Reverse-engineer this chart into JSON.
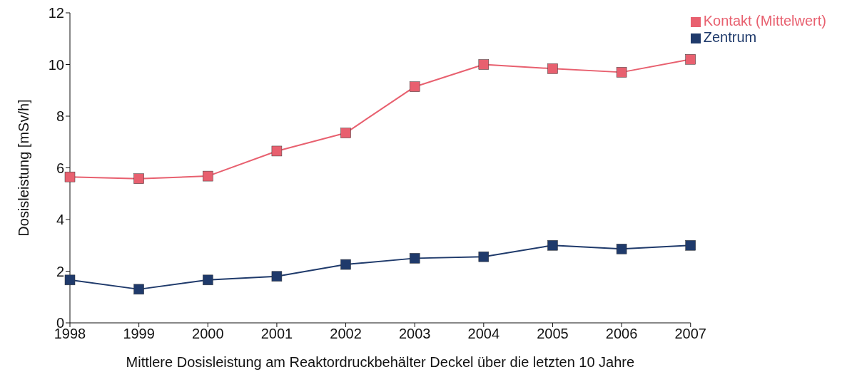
{
  "chart_data": {
    "type": "line",
    "xlabel": "Mittlere Dosisleistung am Reaktordruckbehälter Deckel über die letzten 10 Jahre",
    "ylabel": "Dosisleistung [mSv/h]",
    "categories": [
      "1998",
      "1999",
      "2000",
      "2001",
      "2002",
      "2003",
      "2004",
      "2005",
      "2006",
      "2007"
    ],
    "series": [
      {
        "name": "Kontakt (Mittelwert)",
        "color": "#e8606f",
        "values": [
          5.65,
          5.58,
          5.68,
          6.65,
          7.35,
          9.14,
          10.0,
          9.84,
          9.7,
          10.2
        ]
      },
      {
        "name": "Zentrum",
        "color": "#1f3a6b",
        "values": [
          1.66,
          1.3,
          1.66,
          1.8,
          2.26,
          2.5,
          2.56,
          3.0,
          2.86,
          3.0
        ]
      }
    ],
    "ylim": [
      0,
      12
    ],
    "yticks": [
      0,
      2,
      4,
      6,
      8,
      10,
      12
    ],
    "grid": false,
    "legend": "top right",
    "marker": "square",
    "line_style": "solid"
  }
}
